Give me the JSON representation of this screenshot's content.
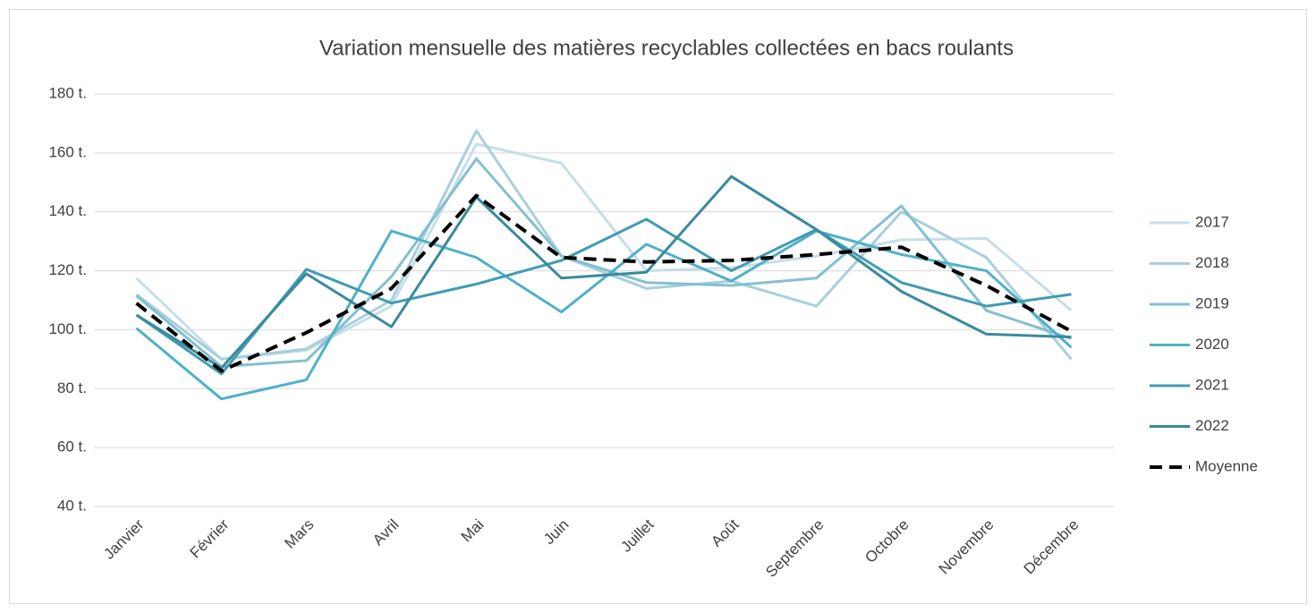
{
  "chart_data": {
    "type": "line",
    "title": "Variation mensuelle des matières recyclables collectées en bacs roulants",
    "categories": [
      "Janvier",
      "Février",
      "Mars",
      "Avril",
      "Mai",
      "Juin",
      "Juillet",
      "Août",
      "Septembre",
      "Octobre",
      "Novembre",
      "Décembre"
    ],
    "series": [
      {
        "name": "2017",
        "color": "#c6dee7",
        "values": [
          117.5,
          90,
          93,
          108,
          163,
          156.5,
          120,
          121,
          125,
          130.5,
          131,
          106.5
        ]
      },
      {
        "name": "2018",
        "color": "#a8cfdb",
        "values": [
          112,
          90,
          93.5,
          110,
          167.5,
          125,
          114,
          116.5,
          108,
          140,
          124.5,
          90
        ]
      },
      {
        "name": "2019",
        "color": "#84bfd0",
        "values": [
          111.5,
          87.5,
          89.5,
          118,
          158,
          125,
          116,
          115,
          117.5,
          142,
          106.5,
          97
        ]
      },
      {
        "name": "2020",
        "color": "#4fb1c8",
        "values": [
          100.5,
          76.5,
          83,
          133.5,
          124.5,
          106,
          129,
          116.5,
          133.5,
          125.5,
          120,
          94
        ]
      },
      {
        "name": "2021",
        "color": "#3f9cb2",
        "values": [
          105,
          85,
          120.5,
          109,
          115.5,
          123.5,
          137.5,
          120,
          134,
          116,
          108,
          112
        ]
      },
      {
        "name": "2022",
        "color": "#3a8a9e",
        "values": [
          105,
          87,
          119,
          101,
          145,
          117.5,
          119.5,
          152,
          134,
          113,
          98.5,
          97.5
        ]
      },
      {
        "name": "Moyenne",
        "color": "#000000",
        "dashed": true,
        "values": [
          109,
          86,
          99,
          114,
          145.5,
          124.5,
          123,
          123.5,
          125.5,
          128,
          115,
          99.5
        ]
      }
    ],
    "ylim": [
      40,
      180
    ],
    "yticks": [
      {
        "value": 40,
        "label": "40 t."
      },
      {
        "value": 60,
        "label": "60 t."
      },
      {
        "value": 80,
        "label": "80 t."
      },
      {
        "value": 100,
        "label": "100 t."
      },
      {
        "value": 120,
        "label": "120 t."
      },
      {
        "value": 140,
        "label": "140 t."
      },
      {
        "value": 160,
        "label": "160 t."
      },
      {
        "value": 180,
        "label": "180 t."
      }
    ],
    "grid": true,
    "legend": "right"
  }
}
